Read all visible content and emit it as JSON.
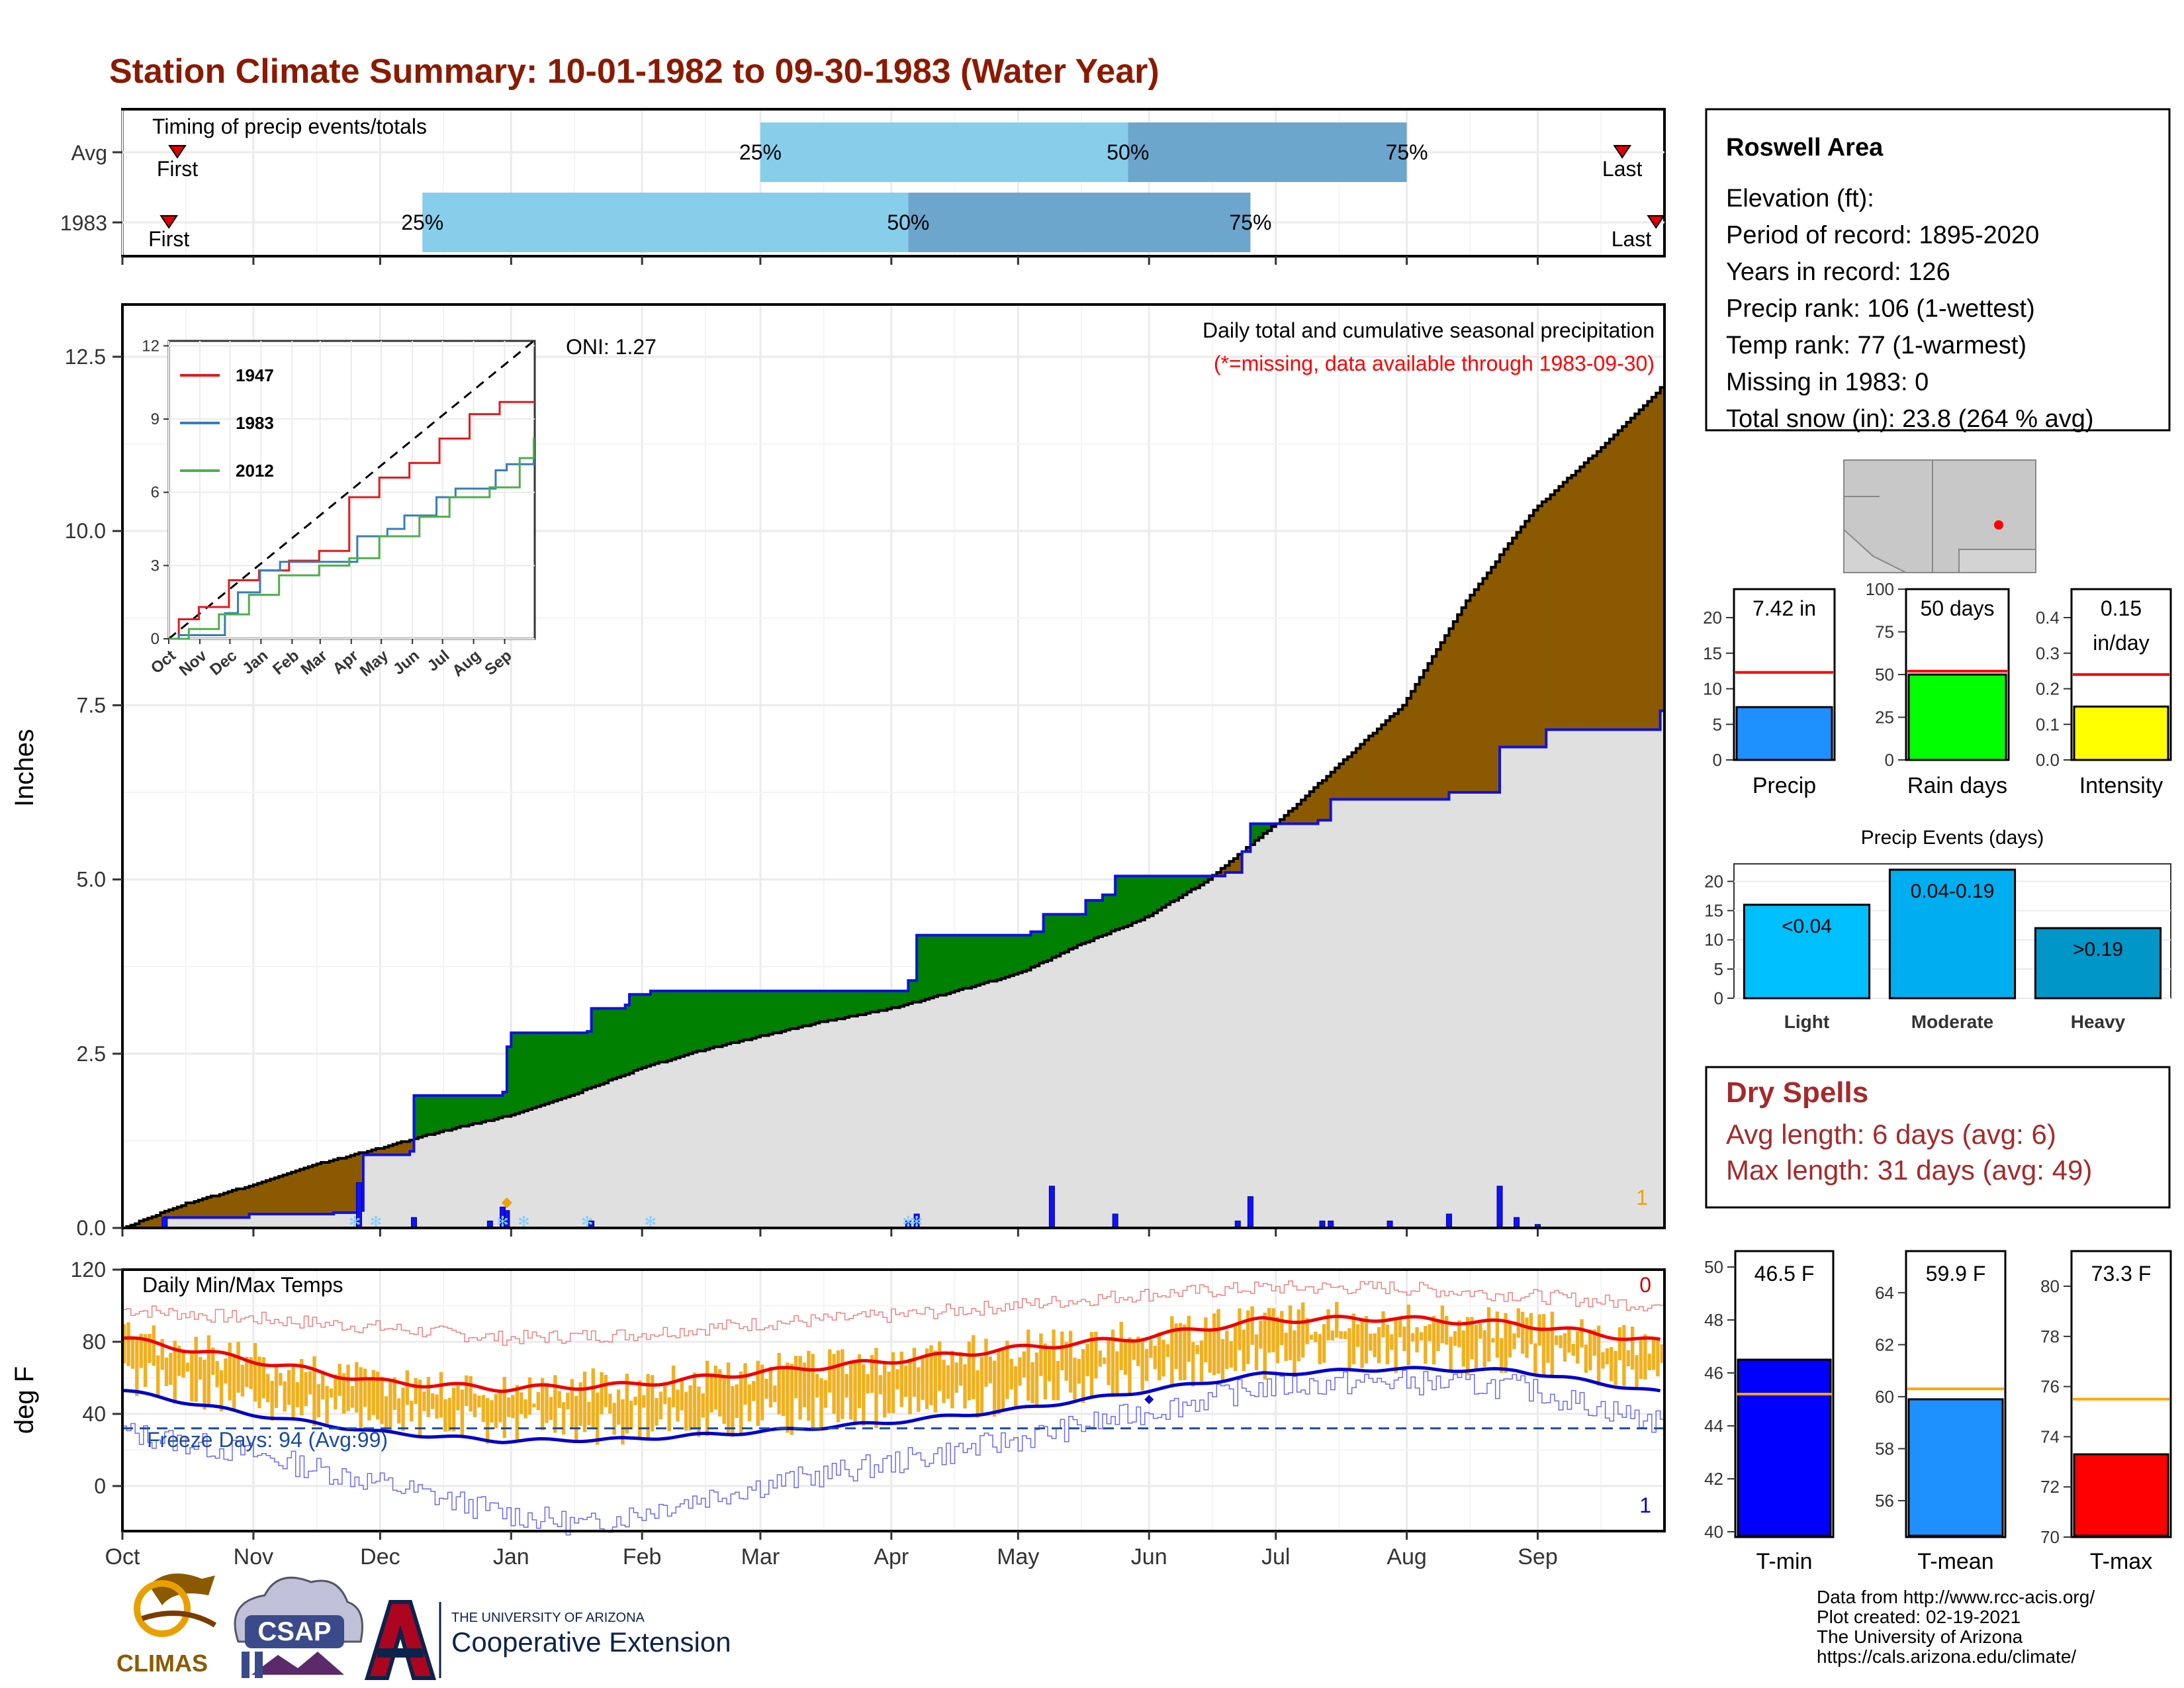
{
  "title": "Station Climate Summary: 10-01-1982 to 09-30-1983 (Water Year)",
  "months": [
    "Oct",
    "Nov",
    "Dec",
    "Jan",
    "Feb",
    "Mar",
    "Apr",
    "May",
    "Jun",
    "Jul",
    "Aug",
    "Sep"
  ],
  "colors": {
    "title": "#8B1A00",
    "brown": "#8B5A00",
    "green": "#008000",
    "grey": "#E0E0E0",
    "blue_line": "#1010E0",
    "light_blue": "#87CEEB",
    "mid_blue": "#6CA6CD",
    "orange": "#F0B020",
    "red": "#FF0000",
    "dry_red": "#A52A2A"
  },
  "timing": {
    "label": "Timing of precip events/totals",
    "rows": [
      {
        "name": "Avg",
        "first_label": "First",
        "last_label": "Last",
        "first": "10-14",
        "q25": "03-01",
        "q50": "05-27",
        "q75": "08-01",
        "last": "09-21"
      },
      {
        "name": "1983",
        "first_label": "First",
        "last_label": "Last",
        "first": "10-12",
        "q25": "12-11",
        "q50": "04-05",
        "q75": "06-25",
        "last": "09-29"
      }
    ],
    "q_labels": [
      "25%",
      "50%",
      "75%"
    ]
  },
  "precip_panel": {
    "ylabel": "Inches",
    "yticks": [
      "0.0",
      "2.5",
      "5.0",
      "7.5",
      "10.0",
      "12.5"
    ],
    "ylim": [
      0,
      13.25
    ],
    "oni": "ONI: 1.27",
    "heading": "Daily total and cumulative seasonal precipitation",
    "missing_note": "(*=missing, data available through 1983-09-30)",
    "count": "1",
    "avg_cumulative": [
      [
        0,
        0
      ],
      [
        15,
        0.35
      ],
      [
        31,
        0.62
      ],
      [
        45,
        0.9
      ],
      [
        61,
        1.15
      ],
      [
        75,
        1.38
      ],
      [
        92,
        1.62
      ],
      [
        106,
        1.9
      ],
      [
        123,
        2.3
      ],
      [
        137,
        2.55
      ],
      [
        151,
        2.75
      ],
      [
        165,
        2.95
      ],
      [
        182,
        3.15
      ],
      [
        196,
        3.38
      ],
      [
        212,
        3.65
      ],
      [
        226,
        4.05
      ],
      [
        242,
        4.45
      ],
      [
        257,
        5.0
      ],
      [
        273,
        5.8
      ],
      [
        287,
        6.6
      ],
      [
        303,
        7.5
      ],
      [
        318,
        9.0
      ],
      [
        334,
        10.3
      ],
      [
        350,
        11.2
      ],
      [
        364,
        12.05
      ]
    ],
    "obs_cumulative": [
      [
        0,
        0
      ],
      [
        10,
        0.15
      ],
      [
        30,
        0.2
      ],
      [
        50,
        0.22
      ],
      [
        56,
        0.25
      ],
      [
        57,
        1.05
      ],
      [
        68,
        1.1
      ],
      [
        69,
        1.9
      ],
      [
        90,
        1.95
      ],
      [
        91,
        2.6
      ],
      [
        92,
        2.8
      ],
      [
        110,
        2.82
      ],
      [
        111,
        3.15
      ],
      [
        119,
        3.2
      ],
      [
        120,
        3.35
      ],
      [
        125,
        3.4
      ],
      [
        186,
        3.55
      ],
      [
        188,
        4.2
      ],
      [
        215,
        4.25
      ],
      [
        218,
        4.5
      ],
      [
        228,
        4.7
      ],
      [
        232,
        4.78
      ],
      [
        235,
        5.05
      ],
      [
        261,
        5.1
      ],
      [
        265,
        5.4
      ],
      [
        267,
        5.8
      ],
      [
        283,
        5.85
      ],
      [
        286,
        6.15
      ],
      [
        314,
        6.25
      ],
      [
        326,
        6.9
      ],
      [
        337,
        7.15
      ],
      [
        364,
        7.42
      ]
    ],
    "daily_bars": [
      [
        10,
        0.15
      ],
      [
        56,
        0.65
      ],
      [
        69,
        0.15
      ],
      [
        87,
        0.1
      ],
      [
        90,
        0.3
      ],
      [
        91,
        0.25
      ],
      [
        111,
        0.1
      ],
      [
        186,
        0.1
      ],
      [
        188,
        0.2
      ],
      [
        220,
        0.6
      ],
      [
        235,
        0.2
      ],
      [
        264,
        0.1
      ],
      [
        267,
        0.45
      ],
      [
        284,
        0.1
      ],
      [
        286,
        0.1
      ],
      [
        300,
        0.1
      ],
      [
        314,
        0.2
      ],
      [
        326,
        0.6
      ],
      [
        330,
        0.15
      ],
      [
        335,
        0.05
      ]
    ]
  },
  "inset": {
    "yticks": [
      "0",
      "3",
      "6",
      "9",
      "12"
    ],
    "xticks": [
      "Oct",
      "Nov",
      "Dec",
      "Jan",
      "Feb",
      "Mar",
      "Apr",
      "May",
      "Jun",
      "Jul",
      "Aug",
      "Sep"
    ],
    "legend": [
      "1947",
      "1983",
      "2012"
    ],
    "series": [
      {
        "name": "1947",
        "color": "#E41A1C",
        "points": [
          [
            0,
            0
          ],
          [
            10,
            0.8
          ],
          [
            30,
            1.3
          ],
          [
            60,
            2.4
          ],
          [
            90,
            2.8
          ],
          [
            120,
            3.2
          ],
          [
            150,
            3.6
          ],
          [
            180,
            5.8
          ],
          [
            210,
            6.6
          ],
          [
            240,
            7.2
          ],
          [
            270,
            8.2
          ],
          [
            300,
            9.2
          ],
          [
            330,
            9.7
          ],
          [
            364,
            9.7
          ]
        ]
      },
      {
        "name": "1983",
        "color": "#377EB8",
        "points": [
          [
            0,
            0
          ],
          [
            10,
            0.15
          ],
          [
            56,
            1.05
          ],
          [
            69,
            1.9
          ],
          [
            91,
            2.8
          ],
          [
            111,
            3.15
          ],
          [
            188,
            4.2
          ],
          [
            218,
            4.5
          ],
          [
            235,
            5.05
          ],
          [
            267,
            5.8
          ],
          [
            286,
            6.15
          ],
          [
            326,
            6.9
          ],
          [
            337,
            7.15
          ],
          [
            364,
            7.42
          ]
        ]
      },
      {
        "name": "2012",
        "color": "#4DAF4A",
        "points": [
          [
            0,
            0
          ],
          [
            20,
            0.4
          ],
          [
            50,
            1.0
          ],
          [
            80,
            1.8
          ],
          [
            110,
            2.6
          ],
          [
            150,
            3.0
          ],
          [
            180,
            3.3
          ],
          [
            210,
            4.2
          ],
          [
            250,
            5.0
          ],
          [
            280,
            5.8
          ],
          [
            320,
            6.2
          ],
          [
            350,
            7.4
          ],
          [
            364,
            8.2
          ]
        ]
      }
    ],
    "mean_line": [
      [
        0,
        0
      ],
      [
        364,
        12.2
      ]
    ]
  },
  "temp_panel": {
    "ylabel": "deg F",
    "yticks": [
      "0",
      "40",
      "80",
      "120"
    ],
    "ylim": [
      -25,
      120
    ],
    "label": "Daily Min/Max Temps",
    "freeze": "Freeze Days: 94 (Avg:99)",
    "count_top": "0",
    "count_bottom": "1",
    "avg_max": [
      [
        0,
        82
      ],
      [
        30,
        70
      ],
      [
        60,
        58
      ],
      [
        90,
        54
      ],
      [
        120,
        56
      ],
      [
        150,
        63
      ],
      [
        180,
        69
      ],
      [
        210,
        76
      ],
      [
        240,
        82
      ],
      [
        270,
        92
      ],
      [
        300,
        93
      ],
      [
        330,
        90
      ],
      [
        364,
        80
      ]
    ],
    "avg_min": [
      [
        0,
        53
      ],
      [
        30,
        40
      ],
      [
        60,
        30
      ],
      [
        90,
        25
      ],
      [
        120,
        26
      ],
      [
        150,
        30
      ],
      [
        180,
        35
      ],
      [
        210,
        42
      ],
      [
        240,
        52
      ],
      [
        270,
        62
      ],
      [
        300,
        65
      ],
      [
        330,
        64
      ],
      [
        364,
        52
      ]
    ],
    "rec_max": [
      [
        0,
        98
      ],
      [
        60,
        88
      ],
      [
        90,
        82
      ],
      [
        120,
        84
      ],
      [
        150,
        90
      ],
      [
        180,
        94
      ],
      [
        210,
        100
      ],
      [
        240,
        106
      ],
      [
        270,
        110
      ],
      [
        300,
        110
      ],
      [
        330,
        106
      ],
      [
        364,
        100
      ]
    ],
    "rec_min": [
      [
        0,
        30
      ],
      [
        30,
        18
      ],
      [
        60,
        2
      ],
      [
        90,
        -15
      ],
      [
        110,
        -22
      ],
      [
        130,
        -10
      ],
      [
        150,
        0
      ],
      [
        180,
        12
      ],
      [
        210,
        25
      ],
      [
        240,
        40
      ],
      [
        270,
        55
      ],
      [
        300,
        58
      ],
      [
        330,
        55
      ],
      [
        364,
        35
      ]
    ]
  },
  "info_box": {
    "name": "Roswell Area",
    "lines": [
      "Elevation (ft):",
      "Period of record: 1895-2020",
      "Years in record: 126",
      "Precip rank: 106 (1-wettest)",
      "Temp rank: 77 (1-warmest)",
      "Missing in 1983: 0",
      "Total snow (in): 23.8 (264 % avg)"
    ]
  },
  "mini_bars": [
    {
      "label": "Precip",
      "value_text": "7.42 in",
      "value": 7.42,
      "avg": 12.3,
      "ylim": [
        0,
        24
      ],
      "yticks": [
        0,
        5,
        10,
        15,
        20
      ],
      "color": "#1E90FF"
    },
    {
      "label": "Rain days",
      "value_text": "50 days",
      "value": 50,
      "avg": 52,
      "ylim": [
        0,
        100
      ],
      "yticks": [
        0,
        25,
        50,
        75,
        100
      ],
      "color": "#00FF00"
    },
    {
      "label": "Intensity",
      "value_text": "0.15",
      "value_text2": "in/day",
      "value": 0.15,
      "avg": 0.24,
      "ylim": [
        0,
        0.48
      ],
      "yticks": [
        "0.0",
        "0.1",
        "0.2",
        "0.3",
        "0.4"
      ],
      "color": "#FFFF00"
    }
  ],
  "events": {
    "title": "Precip Events (days)",
    "categories": [
      "Light",
      "Moderate",
      "Heavy"
    ],
    "labels": [
      "<0.04",
      "0.04-0.19",
      ">0.19"
    ],
    "values": [
      16,
      22,
      12
    ],
    "ylim": [
      0,
      23
    ],
    "yticks": [
      "0",
      "5",
      "10",
      "15",
      "20"
    ],
    "colors": [
      "#00BFFF",
      "#00AEEF",
      "#0096C8"
    ]
  },
  "dry_spells": {
    "title": "Dry Spells",
    "avg": "Avg length: 6 days (avg: 6)",
    "max": "Max length: 31 days (avg: 49)"
  },
  "temp_bars": [
    {
      "label": "T-min",
      "value_text": "46.5 F",
      "value": 46.5,
      "avg": 45.2,
      "ylim": [
        39.8,
        50.6
      ],
      "yticks": [
        40,
        42,
        44,
        46,
        48,
        50
      ],
      "color": "#0000FF"
    },
    {
      "label": "T-mean",
      "value_text": "59.9 F",
      "value": 59.9,
      "avg": 60.3,
      "ylim": [
        54.6,
        65.6
      ],
      "yticks": [
        56,
        58,
        60,
        62,
        64
      ],
      "color": "#1E90FF"
    },
    {
      "label": "T-max",
      "value_text": "73.3 F",
      "value": 73.3,
      "avg": 75.5,
      "ylim": [
        70,
        81.4
      ],
      "yticks": [
        70,
        72,
        74,
        76,
        78,
        80
      ],
      "color": "#FF0000"
    }
  ],
  "footer": {
    "lines": [
      "Data from http://www.rcc-acis.org/",
      "Plot created: 02-19-2021",
      "The University of Arizona",
      "https://cals.arizona.edu/climate/"
    ]
  },
  "logos": {
    "climas": "CLIMAS",
    "csap": "CSAP",
    "ua_small": "THE UNIVERSITY OF ARIZONA",
    "ua_big": "Cooperative Extension"
  }
}
